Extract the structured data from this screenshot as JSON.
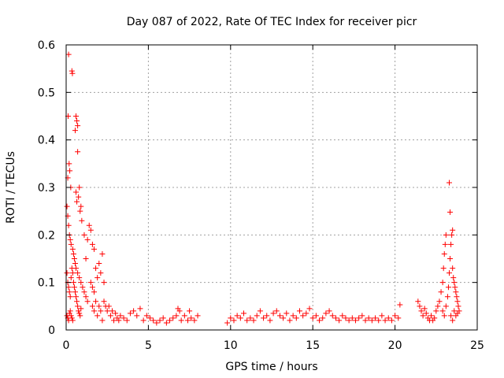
{
  "chart_data": {
    "type": "scatter",
    "title": "Day 087 of 2022, Rate Of TEC Index for receiver picr",
    "xlabel": "GPS time / hours",
    "ylabel": "ROTI / TECUs",
    "xlim": [
      0,
      25
    ],
    "ylim": [
      0,
      0.6
    ],
    "x_ticks": [
      0,
      5,
      10,
      15,
      20,
      25
    ],
    "x_tick_labels": [
      "0",
      "5",
      "10",
      "15",
      "20",
      "25"
    ],
    "y_ticks": [
      0,
      0.1,
      0.2,
      0.3,
      0.4,
      0.5,
      0.6
    ],
    "y_tick_labels": [
      "0",
      "0.1",
      "0.2",
      "0.3",
      "0.4",
      "0.5",
      "0.6"
    ],
    "grid": true,
    "marker": "+",
    "color": "#ff0000",
    "series": [
      {
        "name": "ROTI",
        "points": [
          [
            0.15,
            0.58
          ],
          [
            0.35,
            0.545
          ],
          [
            0.38,
            0.54
          ],
          [
            0.12,
            0.45
          ],
          [
            0.6,
            0.45
          ],
          [
            0.65,
            0.44
          ],
          [
            0.7,
            0.43
          ],
          [
            0.55,
            0.42
          ],
          [
            0.7,
            0.375
          ],
          [
            0.18,
            0.35
          ],
          [
            0.22,
            0.335
          ],
          [
            0.1,
            0.32
          ],
          [
            0.28,
            0.3
          ],
          [
            0.8,
            0.3
          ],
          [
            0.75,
            0.28
          ],
          [
            0.6,
            0.29
          ],
          [
            0.65,
            0.27
          ],
          [
            0.9,
            0.26
          ],
          [
            0.05,
            0.26
          ],
          [
            0.1,
            0.24
          ],
          [
            0.15,
            0.22
          ],
          [
            0.2,
            0.2
          ],
          [
            0.25,
            0.19
          ],
          [
            0.3,
            0.18
          ],
          [
            0.4,
            0.17
          ],
          [
            0.45,
            0.16
          ],
          [
            0.5,
            0.15
          ],
          [
            0.55,
            0.14
          ],
          [
            0.6,
            0.13
          ],
          [
            0.7,
            0.12
          ],
          [
            0.8,
            0.11
          ],
          [
            0.9,
            0.1
          ],
          [
            1.0,
            0.09
          ],
          [
            1.1,
            0.08
          ],
          [
            1.2,
            0.07
          ],
          [
            1.3,
            0.06
          ],
          [
            1.4,
            0.22
          ],
          [
            1.5,
            0.21
          ],
          [
            1.3,
            0.19
          ],
          [
            1.6,
            0.18
          ],
          [
            1.7,
            0.17
          ],
          [
            1.1,
            0.2
          ],
          [
            1.2,
            0.15
          ],
          [
            0.95,
            0.23
          ],
          [
            0.85,
            0.25
          ],
          [
            0.05,
            0.12
          ],
          [
            0.1,
            0.1
          ],
          [
            0.15,
            0.09
          ],
          [
            0.2,
            0.08
          ],
          [
            0.25,
            0.07
          ],
          [
            0.3,
            0.11
          ],
          [
            0.35,
            0.13
          ],
          [
            0.4,
            0.12
          ],
          [
            0.45,
            0.1
          ],
          [
            0.5,
            0.09
          ],
          [
            0.55,
            0.08
          ],
          [
            0.6,
            0.07
          ],
          [
            0.65,
            0.06
          ],
          [
            0.7,
            0.05
          ],
          [
            0.75,
            0.04
          ],
          [
            0.8,
            0.035
          ],
          [
            0.85,
            0.03
          ],
          [
            0.9,
            0.045
          ],
          [
            0.05,
            0.03
          ],
          [
            0.1,
            0.025
          ],
          [
            0.15,
            0.02
          ],
          [
            0.2,
            0.035
          ],
          [
            0.25,
            0.04
          ],
          [
            0.3,
            0.03
          ],
          [
            0.35,
            0.025
          ],
          [
            0.4,
            0.02
          ],
          [
            1.5,
            0.1
          ],
          [
            1.6,
            0.09
          ],
          [
            1.7,
            0.08
          ],
          [
            1.8,
            0.13
          ],
          [
            1.9,
            0.11
          ],
          [
            2.0,
            0.14
          ],
          [
            2.1,
            0.12
          ],
          [
            2.2,
            0.16
          ],
          [
            2.3,
            0.1
          ],
          [
            1.6,
            0.05
          ],
          [
            1.7,
            0.04
          ],
          [
            1.8,
            0.06
          ],
          [
            1.9,
            0.03
          ],
          [
            2.0,
            0.05
          ],
          [
            2.1,
            0.04
          ],
          [
            2.2,
            0.02
          ],
          [
            2.3,
            0.06
          ],
          [
            2.4,
            0.05
          ],
          [
            2.5,
            0.04
          ],
          [
            2.6,
            0.05
          ],
          [
            2.7,
            0.03
          ],
          [
            2.8,
            0.04
          ],
          [
            2.9,
            0.02
          ],
          [
            3.0,
            0.035
          ],
          [
            3.1,
            0.025
          ],
          [
            3.2,
            0.02
          ],
          [
            3.3,
            0.03
          ],
          [
            3.5,
            0.025
          ],
          [
            3.7,
            0.02
          ],
          [
            3.9,
            0.035
          ],
          [
            4.1,
            0.04
          ],
          [
            4.3,
            0.03
          ],
          [
            4.5,
            0.045
          ],
          [
            4.7,
            0.02
          ],
          [
            4.9,
            0.03
          ],
          [
            5.1,
            0.025
          ],
          [
            5.3,
            0.02
          ],
          [
            5.5,
            0.015
          ],
          [
            5.7,
            0.02
          ],
          [
            5.9,
            0.025
          ],
          [
            6.1,
            0.015
          ],
          [
            6.3,
            0.02
          ],
          [
            6.5,
            0.025
          ],
          [
            6.7,
            0.03
          ],
          [
            6.8,
            0.045
          ],
          [
            6.9,
            0.04
          ],
          [
            7.0,
            0.02
          ],
          [
            7.2,
            0.03
          ],
          [
            7.4,
            0.02
          ],
          [
            7.6,
            0.025
          ],
          [
            7.8,
            0.02
          ],
          [
            7.5,
            0.04
          ],
          [
            8.0,
            0.03
          ],
          [
            9.8,
            0.015
          ],
          [
            10.0,
            0.025
          ],
          [
            10.2,
            0.02
          ],
          [
            10.4,
            0.03
          ],
          [
            10.6,
            0.025
          ],
          [
            10.8,
            0.035
          ],
          [
            11.0,
            0.02
          ],
          [
            11.2,
            0.025
          ],
          [
            11.4,
            0.02
          ],
          [
            11.6,
            0.03
          ],
          [
            11.8,
            0.04
          ],
          [
            12.0,
            0.025
          ],
          [
            12.2,
            0.03
          ],
          [
            12.4,
            0.02
          ],
          [
            12.6,
            0.035
          ],
          [
            12.8,
            0.04
          ],
          [
            13.0,
            0.03
          ],
          [
            13.2,
            0.025
          ],
          [
            13.4,
            0.035
          ],
          [
            13.6,
            0.02
          ],
          [
            13.8,
            0.03
          ],
          [
            14.0,
            0.025
          ],
          [
            14.2,
            0.04
          ],
          [
            14.4,
            0.03
          ],
          [
            14.6,
            0.035
          ],
          [
            14.8,
            0.045
          ],
          [
            15.0,
            0.025
          ],
          [
            15.2,
            0.03
          ],
          [
            15.4,
            0.02
          ],
          [
            15.6,
            0.025
          ],
          [
            15.8,
            0.035
          ],
          [
            16.0,
            0.04
          ],
          [
            16.2,
            0.03
          ],
          [
            16.4,
            0.025
          ],
          [
            16.6,
            0.02
          ],
          [
            16.8,
            0.03
          ],
          [
            17.0,
            0.025
          ],
          [
            17.2,
            0.02
          ],
          [
            17.4,
            0.025
          ],
          [
            17.6,
            0.02
          ],
          [
            17.8,
            0.025
          ],
          [
            18.0,
            0.03
          ],
          [
            18.2,
            0.02
          ],
          [
            18.4,
            0.025
          ],
          [
            18.6,
            0.02
          ],
          [
            18.8,
            0.025
          ],
          [
            19.0,
            0.02
          ],
          [
            19.2,
            0.03
          ],
          [
            19.4,
            0.02
          ],
          [
            19.6,
            0.025
          ],
          [
            19.8,
            0.02
          ],
          [
            20.0,
            0.03
          ],
          [
            20.2,
            0.025
          ],
          [
            20.3,
            0.053
          ],
          [
            21.4,
            0.06
          ],
          [
            21.5,
            0.05
          ],
          [
            21.6,
            0.04
          ],
          [
            21.7,
            0.03
          ],
          [
            21.8,
            0.045
          ],
          [
            21.9,
            0.035
          ],
          [
            22.0,
            0.025
          ],
          [
            22.1,
            0.02
          ],
          [
            22.2,
            0.03
          ],
          [
            22.3,
            0.02
          ],
          [
            22.4,
            0.025
          ],
          [
            22.5,
            0.04
          ],
          [
            22.6,
            0.05
          ],
          [
            22.7,
            0.06
          ],
          [
            22.8,
            0.08
          ],
          [
            22.9,
            0.1
          ],
          [
            22.95,
            0.13
          ],
          [
            23.0,
            0.16
          ],
          [
            23.05,
            0.18
          ],
          [
            23.1,
            0.2
          ],
          [
            22.9,
            0.04
          ],
          [
            23.0,
            0.03
          ],
          [
            23.1,
            0.05
          ],
          [
            23.2,
            0.07
          ],
          [
            23.25,
            0.09
          ],
          [
            23.3,
            0.12
          ],
          [
            23.35,
            0.15
          ],
          [
            23.4,
            0.18
          ],
          [
            23.45,
            0.2
          ],
          [
            23.5,
            0.21
          ],
          [
            23.3,
            0.31
          ],
          [
            23.35,
            0.248
          ],
          [
            23.5,
            0.13
          ],
          [
            23.55,
            0.11
          ],
          [
            23.6,
            0.1
          ],
          [
            23.65,
            0.09
          ],
          [
            23.7,
            0.08
          ],
          [
            23.75,
            0.07
          ],
          [
            23.8,
            0.06
          ],
          [
            23.85,
            0.05
          ],
          [
            23.6,
            0.04
          ],
          [
            23.7,
            0.03
          ],
          [
            23.8,
            0.035
          ],
          [
            23.9,
            0.04
          ],
          [
            23.5,
            0.02
          ],
          [
            23.4,
            0.03
          ]
        ]
      }
    ]
  }
}
